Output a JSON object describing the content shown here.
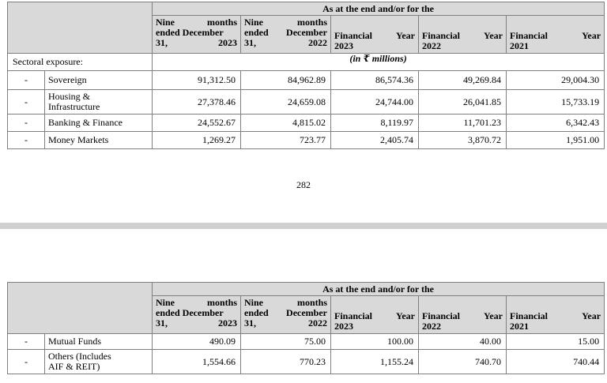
{
  "header": {
    "span_title": "As at the end and/or for the",
    "columns": [
      {
        "l1a": "Nine",
        "l1b": "months",
        "l2": "ended December",
        "l3": "31, 2023"
      },
      {
        "l1a": "Nine",
        "l1b": "months",
        "l2a": "ended",
        "l2b": "December",
        "l3": "31, 2022"
      },
      {
        "l1a": "Financial",
        "l1b": "Year",
        "l2": "2023"
      },
      {
        "l1a": "Financial",
        "l1b": "Year",
        "l2": "2022"
      },
      {
        "l1a": "Financial",
        "l1b": "Year",
        "l2": "2021"
      }
    ]
  },
  "table1": {
    "section_label": "Sectoral exposure:",
    "units": "(in ₹ millions)",
    "rows": [
      {
        "dash": "-",
        "label": "Sovereign",
        "v": [
          "91,312.50",
          "84,962.89",
          "86,574.36",
          "49,269.84",
          "29,004.30"
        ]
      },
      {
        "dash": "-",
        "label1": "Housing &",
        "label2": "Infrastructure",
        "v": [
          "27,378.46",
          "24,659.08",
          "24,744.00",
          "26,041.85",
          "15,733.19"
        ]
      },
      {
        "dash": "-",
        "label": "Banking & Finance",
        "v": [
          "24,552.67",
          "4,815.02",
          "8,119.97",
          "11,701.23",
          "6,342.43"
        ]
      },
      {
        "dash": "-",
        "label": "Money Markets",
        "v": [
          "1,269.27",
          "723.77",
          "2,405.74",
          "3,870.72",
          "1,951.00"
        ]
      }
    ]
  },
  "page_number": "282",
  "table2": {
    "rows": [
      {
        "dash": "-",
        "label": "Mutual Funds",
        "v": [
          "490.09",
          "75.00",
          "100.00",
          "40.00",
          "15.00"
        ]
      },
      {
        "dash": "-",
        "label1": "Others (Includes",
        "label2": "AIF & REIT)",
        "v": [
          "1,554.66",
          "770.23",
          "1,155.24",
          "740.70",
          "740.44"
        ]
      }
    ]
  }
}
